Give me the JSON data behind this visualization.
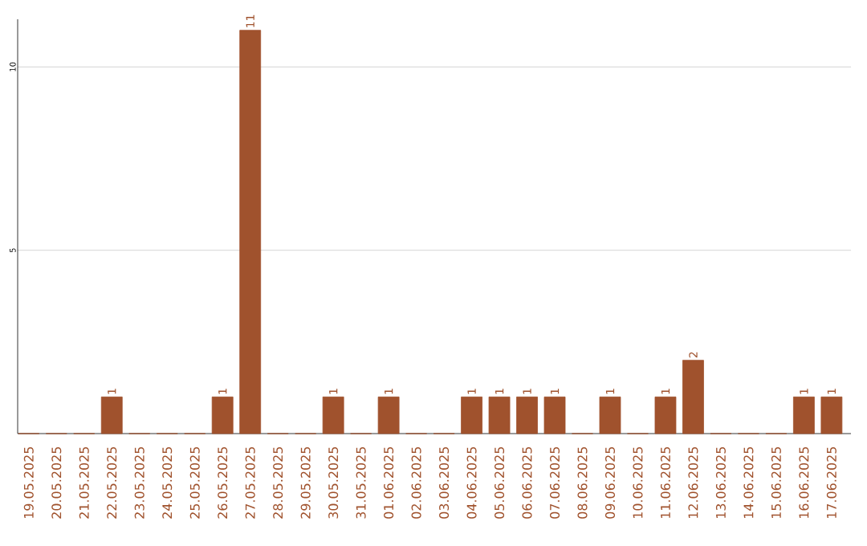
{
  "chart_data": {
    "type": "bar",
    "categories": [
      "19.05.2025",
      "20.05.2025",
      "21.05.2025",
      "22.05.2025",
      "23.05.2025",
      "24.05.2025",
      "25.05.2025",
      "26.05.2025",
      "27.05.2025",
      "28.05.2025",
      "29.05.2025",
      "30.05.2025",
      "31.05.2025",
      "01.06.2025",
      "02.06.2025",
      "03.06.2025",
      "04.06.2025",
      "05.06.2025",
      "06.06.2025",
      "07.06.2025",
      "08.06.2025",
      "09.06.2025",
      "10.06.2025",
      "11.06.2025",
      "12.06.2025",
      "13.06.2025",
      "14.06.2025",
      "15.06.2025",
      "16.06.2025",
      "17.06.2025"
    ],
    "values": [
      0,
      0,
      0,
      1,
      0,
      0,
      0,
      1,
      11,
      0,
      0,
      1,
      0,
      1,
      0,
      0,
      1,
      1,
      1,
      1,
      0,
      1,
      0,
      1,
      2,
      0,
      0,
      0,
      1,
      1
    ],
    "value_labels": [
      null,
      null,
      null,
      "1",
      null,
      null,
      null,
      "1",
      "11",
      null,
      null,
      "1",
      null,
      "1",
      null,
      null,
      "1",
      "1",
      "1",
      "1",
      null,
      "1",
      null,
      "1",
      "2",
      null,
      null,
      null,
      "1",
      "1"
    ],
    "color": "#a0522d",
    "ylim": [
      0,
      11.3
    ],
    "yticks": [
      5,
      10
    ],
    "grid": "y"
  }
}
